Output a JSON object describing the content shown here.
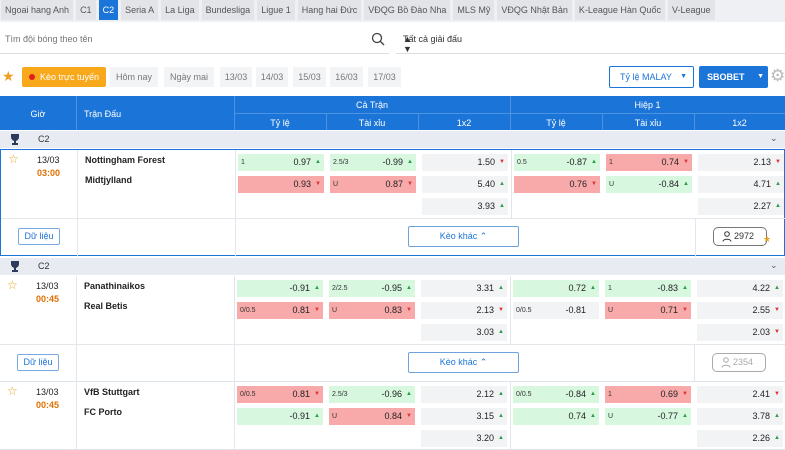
{
  "tabs": [
    {
      "label": "Ngoai hang Anh",
      "active": false
    },
    {
      "label": "C1",
      "active": false
    },
    {
      "label": "C2",
      "active": true
    },
    {
      "label": "Seria A",
      "active": false
    },
    {
      "label": "La Liga",
      "active": false
    },
    {
      "label": "Bundesliga",
      "active": false
    },
    {
      "label": "Ligue 1",
      "active": false
    },
    {
      "label": "Hang hai Đức",
      "active": false
    },
    {
      "label": "VĐQG Bồ Đào Nha",
      "active": false
    },
    {
      "label": "MLS Mỹ",
      "active": false
    },
    {
      "label": "VĐQG Nhật Bản",
      "active": false
    },
    {
      "label": "K-League Hàn Quốc",
      "active": false
    },
    {
      "label": "V-League",
      "active": false
    }
  ],
  "search": {
    "placeholder": "Tìm đội bóng theo tên"
  },
  "league_filter": {
    "selected": "Tất cả giải đấu"
  },
  "datebar": {
    "live_label": "Kèo trực tuyến",
    "dates": [
      "Hôm nay",
      "Ngày mai",
      "13/03",
      "14/03",
      "15/03",
      "16/03",
      "17/03"
    ],
    "odds_type": "Tỷ lệ MALAY",
    "bookmaker": "SBOBET"
  },
  "header": {
    "time": "Giờ",
    "match": "Trận Đấu",
    "full": "Cả Trận",
    "half": "Hiệp 1",
    "handicap": "Tỷ lệ",
    "overunder": "Tài xỉu",
    "onextwo": "1x2"
  },
  "buttons": {
    "data": "Dữ liệu",
    "more": "Kèo khác"
  },
  "matches": [
    {
      "league": "C2",
      "date": "13/03",
      "time": "03:00",
      "home": "Nottingham Forest",
      "away": "Midtjylland",
      "viewers": "2972",
      "rows": [
        [
          {
            "h": "1",
            "v": "0.97",
            "c": "green",
            "d": "up"
          },
          {
            "h": "2.5/3",
            "v": "-0.99",
            "c": "green",
            "d": "up"
          },
          {
            "h": "",
            "v": "1.50",
            "c": "grey",
            "d": "down"
          },
          {
            "h": "0.5",
            "v": "-0.87",
            "c": "green",
            "d": "up"
          },
          {
            "h": "1",
            "v": "0.74",
            "c": "red",
            "d": "down"
          },
          {
            "h": "",
            "v": "2.13",
            "c": "grey",
            "d": "down"
          }
        ],
        [
          {
            "h": "",
            "v": "0.93",
            "c": "red",
            "d": "down"
          },
          {
            "h": "U",
            "v": "0.87",
            "c": "red",
            "d": "down"
          },
          {
            "h": "",
            "v": "5.40",
            "c": "grey",
            "d": "up"
          },
          {
            "h": "",
            "v": "0.76",
            "c": "red",
            "d": "down"
          },
          {
            "h": "U",
            "v": "-0.84",
            "c": "green",
            "d": "up"
          },
          {
            "h": "",
            "v": "4.71",
            "c": "grey",
            "d": "up"
          }
        ],
        [
          {
            "h": "",
            "v": "",
            "c": "none",
            "d": ""
          },
          {
            "h": "",
            "v": "",
            "c": "none",
            "d": ""
          },
          {
            "h": "",
            "v": "3.93",
            "c": "grey",
            "d": "up"
          },
          {
            "h": "",
            "v": "",
            "c": "none",
            "d": ""
          },
          {
            "h": "",
            "v": "",
            "c": "none",
            "d": ""
          },
          {
            "h": "",
            "v": "2.27",
            "c": "grey",
            "d": "up"
          }
        ]
      ]
    },
    {
      "league": "C2",
      "date": "13/03",
      "time": "00:45",
      "home": "Panathinaikos",
      "away": "Real Betis",
      "viewers": "2354",
      "rows": [
        [
          {
            "h": "",
            "v": "-0.91",
            "c": "green",
            "d": "up"
          },
          {
            "h": "2/2.5",
            "v": "-0.95",
            "c": "green",
            "d": "up"
          },
          {
            "h": "",
            "v": "3.31",
            "c": "grey",
            "d": "up"
          },
          {
            "h": "",
            "v": "0.72",
            "c": "green",
            "d": "up"
          },
          {
            "h": "1",
            "v": "-0.83",
            "c": "green",
            "d": "up"
          },
          {
            "h": "",
            "v": "4.22",
            "c": "grey",
            "d": "up"
          }
        ],
        [
          {
            "h": "0/0.5",
            "v": "0.81",
            "c": "red",
            "d": "down"
          },
          {
            "h": "U",
            "v": "0.83",
            "c": "red",
            "d": "down"
          },
          {
            "h": "",
            "v": "2.13",
            "c": "grey",
            "d": "down"
          },
          {
            "h": "0/0.5",
            "v": "-0.81",
            "c": "grey",
            "d": ""
          },
          {
            "h": "U",
            "v": "0.71",
            "c": "red",
            "d": "down"
          },
          {
            "h": "",
            "v": "2.55",
            "c": "grey",
            "d": "down"
          }
        ],
        [
          {
            "h": "",
            "v": "",
            "c": "none",
            "d": ""
          },
          {
            "h": "",
            "v": "",
            "c": "none",
            "d": ""
          },
          {
            "h": "",
            "v": "3.03",
            "c": "grey",
            "d": "up"
          },
          {
            "h": "",
            "v": "",
            "c": "none",
            "d": ""
          },
          {
            "h": "",
            "v": "",
            "c": "none",
            "d": ""
          },
          {
            "h": "",
            "v": "2.03",
            "c": "grey",
            "d": "down"
          }
        ]
      ]
    },
    {
      "league": "",
      "date": "13/03",
      "time": "00:45",
      "home": "VfB Stuttgart",
      "away": "FC Porto",
      "viewers": "",
      "rows": [
        [
          {
            "h": "0/0.5",
            "v": "0.81",
            "c": "red",
            "d": "down"
          },
          {
            "h": "2.5/3",
            "v": "-0.96",
            "c": "green",
            "d": "up"
          },
          {
            "h": "",
            "v": "2.12",
            "c": "grey",
            "d": "up"
          },
          {
            "h": "0/0.5",
            "v": "-0.84",
            "c": "green",
            "d": "up"
          },
          {
            "h": "1",
            "v": "0.69",
            "c": "red",
            "d": "down"
          },
          {
            "h": "",
            "v": "2.41",
            "c": "grey",
            "d": "down"
          }
        ],
        [
          {
            "h": "",
            "v": "-0.91",
            "c": "green",
            "d": "up"
          },
          {
            "h": "U",
            "v": "0.84",
            "c": "red",
            "d": "down"
          },
          {
            "h": "",
            "v": "3.15",
            "c": "grey",
            "d": "up"
          },
          {
            "h": "",
            "v": "0.74",
            "c": "green",
            "d": "up"
          },
          {
            "h": "U",
            "v": "-0.77",
            "c": "green",
            "d": "up"
          },
          {
            "h": "",
            "v": "3.78",
            "c": "grey",
            "d": "up"
          }
        ],
        [
          {
            "h": "",
            "v": "",
            "c": "none",
            "d": ""
          },
          {
            "h": "",
            "v": "",
            "c": "none",
            "d": ""
          },
          {
            "h": "",
            "v": "3.20",
            "c": "grey",
            "d": "up"
          },
          {
            "h": "",
            "v": "",
            "c": "none",
            "d": ""
          },
          {
            "h": "",
            "v": "",
            "c": "none",
            "d": ""
          },
          {
            "h": "",
            "v": "2.26",
            "c": "grey",
            "d": "up"
          }
        ]
      ]
    }
  ]
}
